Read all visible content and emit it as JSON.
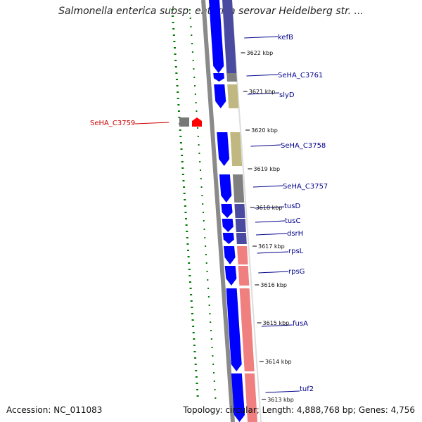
{
  "title": "Salmonella enterica subsp. enterica serovar Heidelberg str. ...",
  "footer": {
    "accession": "Accession: NC_011083",
    "stats": "Topology: circular; Length: 4,888,768 bp; Genes: 4,756"
  },
  "colors": {
    "forward_cds": "#0000ff",
    "cog_navy": "#4a4aa0",
    "cog_gray": "#808080",
    "cog_khaki": "#c0b880",
    "cog_salmon": "#f08080",
    "label_blue": "#00008b",
    "label_red": "#cc0000",
    "gc_green": "#007700"
  },
  "ticks": [
    "3622 kbp",
    "3621 kbp",
    "3620 kbp",
    "3619 kbp",
    "3618 kbp",
    "3617 kbp",
    "3616 kbp",
    "3615 kbp",
    "3614 kbp",
    "3613 kbp"
  ],
  "genes": [
    {
      "label": "kefB",
      "strand": "forward",
      "cog": "navy"
    },
    {
      "label": "SeHA_C3761",
      "strand": "forward",
      "cog": "gray"
    },
    {
      "label": "slyD",
      "strand": "forward",
      "cog": "khaki"
    },
    {
      "label": "SeHA_C3759",
      "strand": "reverse",
      "cog": "gray"
    },
    {
      "label": "SeHA_C3758",
      "strand": "forward",
      "cog": "khaki"
    },
    {
      "label": "SeHA_C3757",
      "strand": "forward",
      "cog": "gray"
    },
    {
      "label": "tusD",
      "strand": "forward",
      "cog": "navy"
    },
    {
      "label": "tusC",
      "strand": "forward",
      "cog": "navy"
    },
    {
      "label": "dsrH",
      "strand": "forward",
      "cog": "navy"
    },
    {
      "label": "rpsL",
      "strand": "forward",
      "cog": "salmon"
    },
    {
      "label": "rpsG",
      "strand": "forward",
      "cog": "salmon"
    },
    {
      "label": "fusA",
      "strand": "forward",
      "cog": "salmon"
    },
    {
      "label": "tuf2",
      "strand": "forward",
      "cog": "salmon"
    }
  ]
}
